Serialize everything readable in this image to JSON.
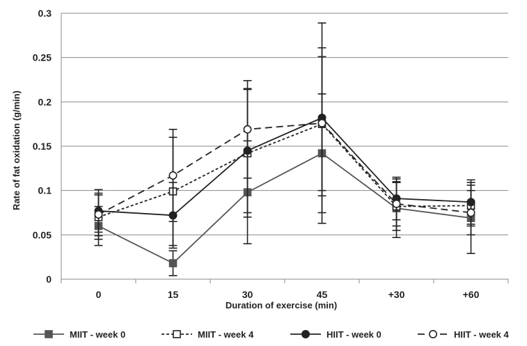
{
  "chart_data": {
    "type": "line",
    "title": "",
    "xlabel": "Duration of exercise (min)",
    "ylabel": "Rate of fat oxidation (g/min)",
    "categories": [
      "0",
      "15",
      "30",
      "45",
      "+30",
      "+60"
    ],
    "ylim": [
      0,
      0.3
    ],
    "yticks": [
      "0",
      "0.05",
      "0.1",
      "0.15",
      "0.2",
      "0.25",
      "0.3"
    ],
    "grid": true,
    "legend": "bottom",
    "series": [
      {
        "name": "MIIT - week 0",
        "marker": "filled-square",
        "line": "solid",
        "color": "#555555",
        "values": [
          0.06,
          0.018,
          0.098,
          0.142,
          0.08,
          0.069
        ],
        "err_low": [
          0.038,
          0.004,
          0.04,
          0.075,
          0.047,
          0.029
        ],
        "err_high": [
          0.082,
          0.032,
          0.156,
          0.209,
          0.113,
          0.109
        ]
      },
      {
        "name": "MIIT - week 4",
        "marker": "open-square",
        "line": "dotted",
        "color": "#222222",
        "values": [
          0.07,
          0.099,
          0.142,
          0.175,
          0.082,
          0.083
        ],
        "err_low": [
          0.045,
          0.038,
          0.07,
          0.1,
          0.055,
          0.06
        ],
        "err_high": [
          0.095,
          0.16,
          0.214,
          0.251,
          0.109,
          0.106
        ]
      },
      {
        "name": "HIIT - week 0",
        "marker": "filled-circle",
        "line": "solid",
        "color": "#222222",
        "values": [
          0.077,
          0.072,
          0.145,
          0.182,
          0.091,
          0.087
        ],
        "err_low": [
          0.053,
          0.035,
          0.075,
          0.094,
          0.067,
          0.062
        ],
        "err_high": [
          0.101,
          0.109,
          0.215,
          0.261,
          0.115,
          0.112
        ]
      },
      {
        "name": "HIIT - week 4",
        "marker": "open-circle",
        "line": "dashed",
        "color": "#222222",
        "values": [
          0.073,
          0.117,
          0.169,
          0.176,
          0.085,
          0.075
        ],
        "err_low": [
          0.049,
          0.065,
          0.114,
          0.063,
          0.06,
          0.05
        ],
        "err_high": [
          0.097,
          0.169,
          0.224,
          0.289,
          0.11,
          0.1
        ]
      }
    ]
  }
}
